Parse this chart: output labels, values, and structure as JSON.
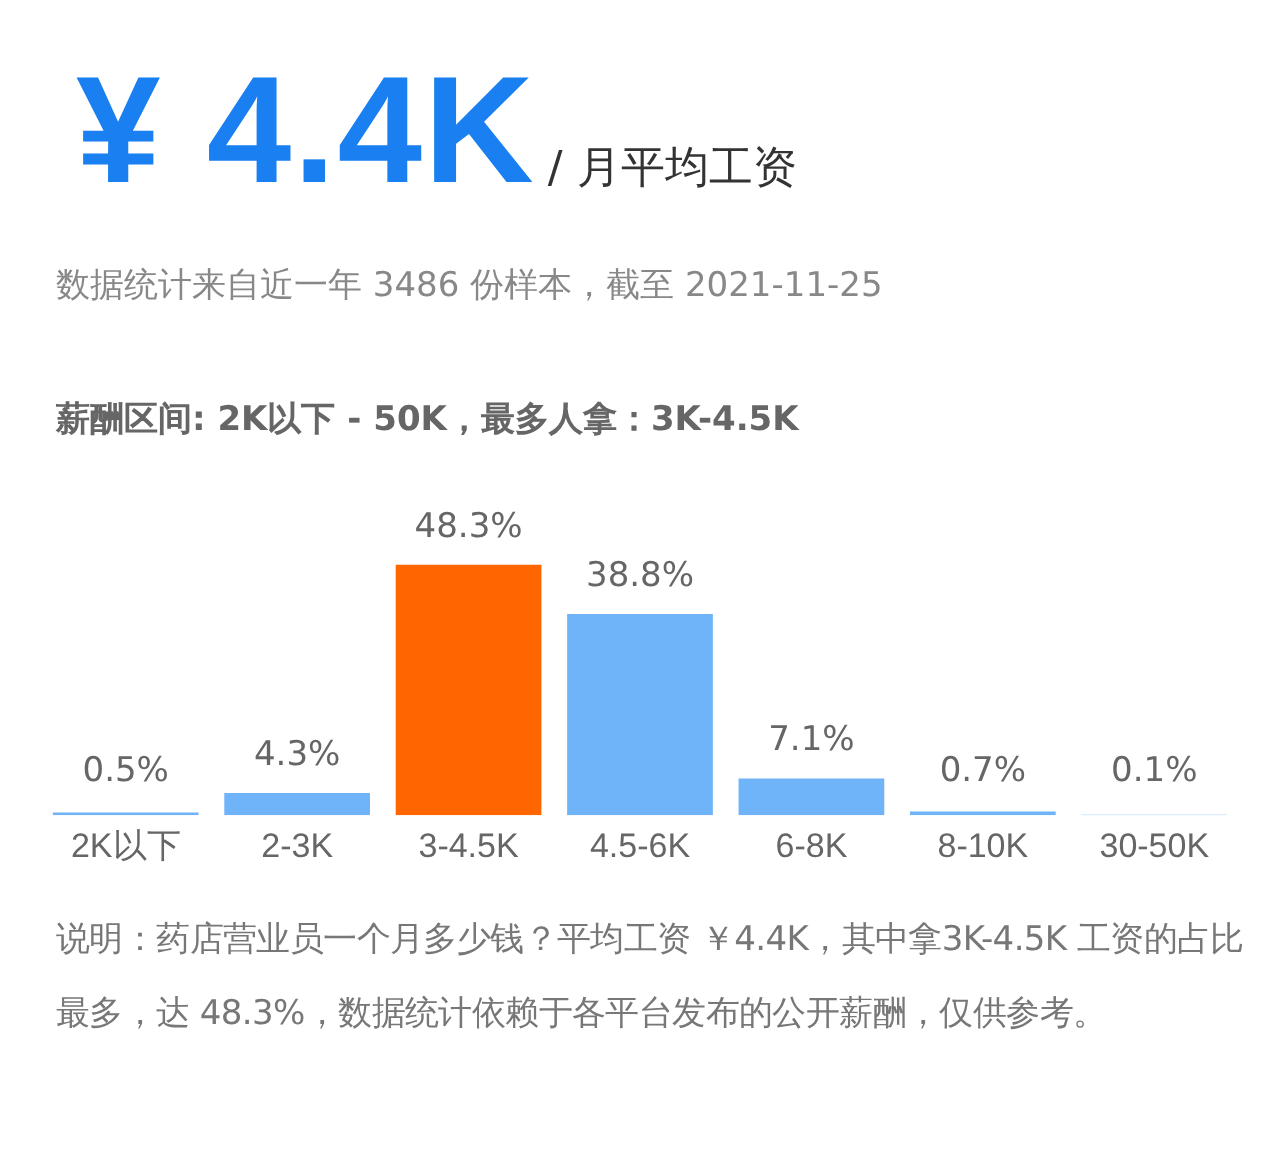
{
  "chart_data": {
    "type": "bar",
    "title": "¥ 4.4K",
    "subtitle": "/ 月平均工资",
    "annotations": [
      "数据统计来自近一年 3486 份样本，截至 2021-11-25",
      "薪酬区间: 2K以下 - 50K，最多人拿：3K-4.5K",
      "说明：药店营业员一个月多少钱？平均工资 ￥4.4K，其中拿3K-4.5K 工资的占比最多，达 48.3%，数据统计依赖于各平台发布的公开薪酬，仅供参考。"
    ],
    "categories": [
      "2K以下",
      "2-3K",
      "3-4.5K",
      "4.5-6K",
      "6-8K",
      "8-10K",
      "30-50K"
    ],
    "values": [
      0.5,
      4.3,
      48.3,
      38.8,
      7.1,
      0.7,
      0.1
    ],
    "colors": [
      "#6fb3f8",
      "#6fb3f8",
      "#ff6600",
      "#6fb3f8",
      "#6fb3f8",
      "#6fb3f8",
      "#6fb3f8"
    ],
    "value_labels": [
      "0.5%",
      "4.3%",
      "48.3%",
      "38.8%",
      "7.1%",
      "0.7%",
      "0.1%"
    ],
    "tick_labels": "x",
    "grid": false,
    "legend": false
  }
}
